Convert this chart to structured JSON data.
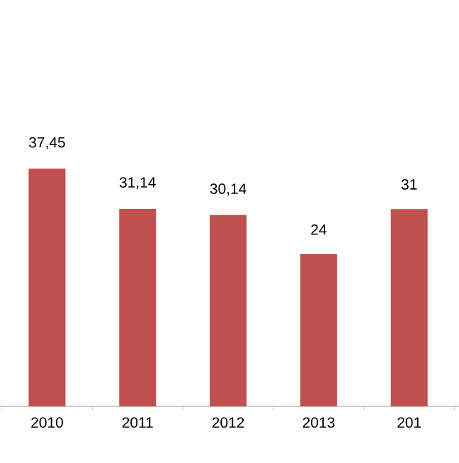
{
  "chart_data": {
    "type": "bar",
    "categories": [
      "2010",
      "2011",
      "2012",
      "2013",
      "201"
    ],
    "values": [
      37.45,
      31.14,
      30.14,
      24,
      31.1
    ],
    "value_labels": [
      "37,45",
      "31,14",
      "30,14",
      "24",
      "31"
    ],
    "color": "#c0504d",
    "tick_labels": "x"
  }
}
